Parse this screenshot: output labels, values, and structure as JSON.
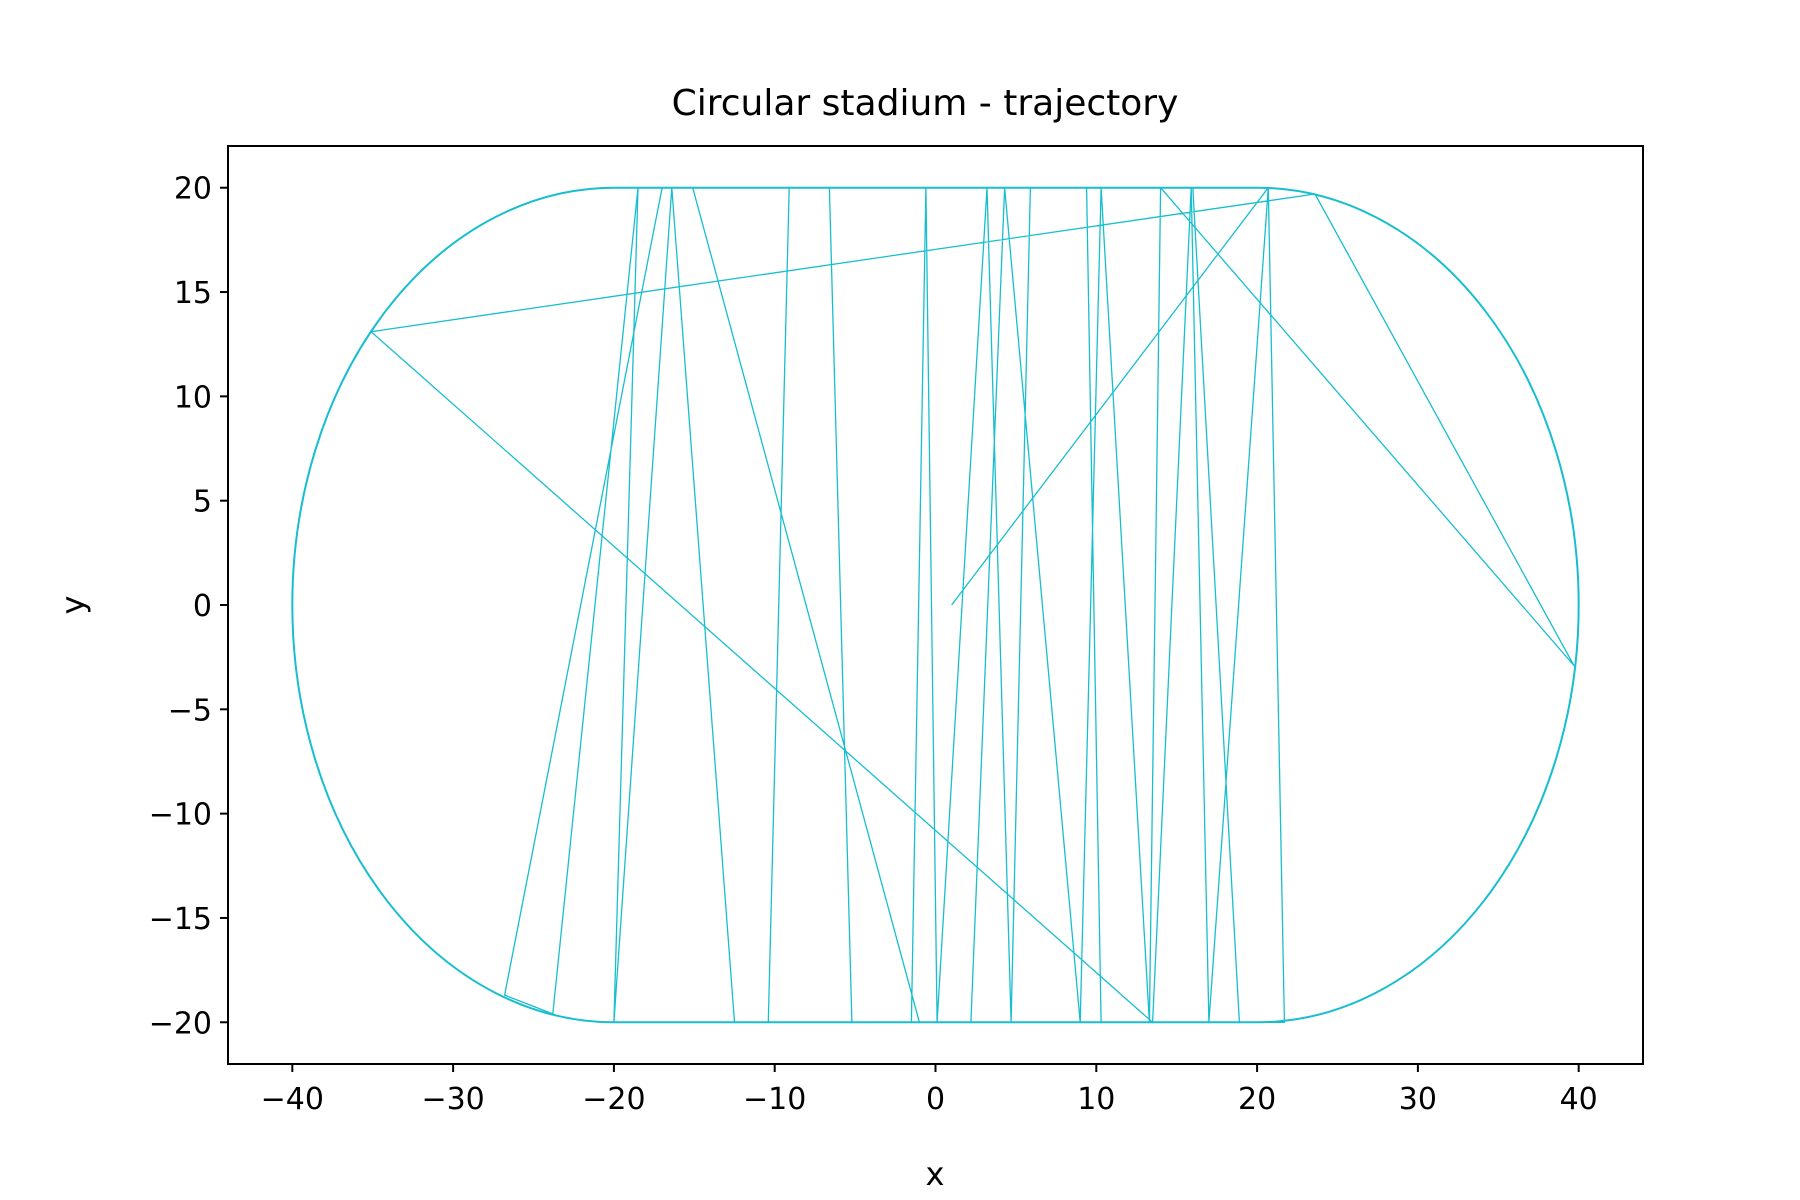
{
  "chart_data": {
    "type": "line",
    "title": "Circular stadium - trajectory",
    "xlabel": "x",
    "ylabel": "y",
    "xlim": [
      -44,
      44
    ],
    "ylim": [
      -22,
      22
    ],
    "xticks": [
      -40,
      -30,
      -20,
      -10,
      0,
      10,
      20,
      30,
      40
    ],
    "yticks": [
      -20,
      -15,
      -10,
      -5,
      0,
      5,
      10,
      15,
      20
    ],
    "xtick_labels": [
      "−40",
      "−30",
      "−20",
      "−10",
      "0",
      "10",
      "20",
      "30",
      "40"
    ],
    "ytick_labels": [
      "−20",
      "−15",
      "−10",
      "−5",
      "0",
      "5",
      "10",
      "15",
      "20"
    ],
    "grid": false,
    "line_color": "#17becf",
    "series": [
      {
        "name": "",
        "role": "boundary",
        "shape": "stadium",
        "straight_x_range": [
          -20,
          20
        ],
        "y_extent": 20,
        "end_x_extent": 40
      },
      {
        "name": "",
        "role": "trajectory",
        "x": [
          1.0,
          20.7,
          21.7,
          18.9,
          16.0,
          14.0,
          13.3,
          10.3,
          9.4,
          5.9,
          4.7,
          3.2,
          0.1,
          -0.6,
          -1.5,
          -5.2,
          -6.6,
          -9.1,
          -10.4,
          -12.5,
          -16.4,
          -20.0,
          -18.5,
          -23.8,
          -26.8,
          -17.0,
          -15.1,
          -1.0,
          2.2,
          4.3,
          9.0,
          10.3,
          13.3,
          14.0,
          39.7,
          23.6,
          -35.1,
          13.5,
          15.9,
          17.0,
          20.7
        ],
        "y": [
          0.0,
          20.0,
          -20.0,
          -20.0,
          20.0,
          20.0,
          -20.0,
          -20.0,
          20.0,
          20.0,
          -20.0,
          20.0,
          -20.0,
          20.0,
          -20.0,
          -20.0,
          20.0,
          20.0,
          -20.0,
          -20.0,
          20.0,
          -20.0,
          20.0,
          -19.6,
          -18.7,
          20.0,
          20.0,
          -20.0,
          -20.0,
          20.0,
          -20.0,
          20.0,
          -20.0,
          20.0,
          -2.9,
          19.7,
          13.1,
          -20.0,
          20.0,
          -20.0,
          20.0
        ]
      }
    ]
  }
}
